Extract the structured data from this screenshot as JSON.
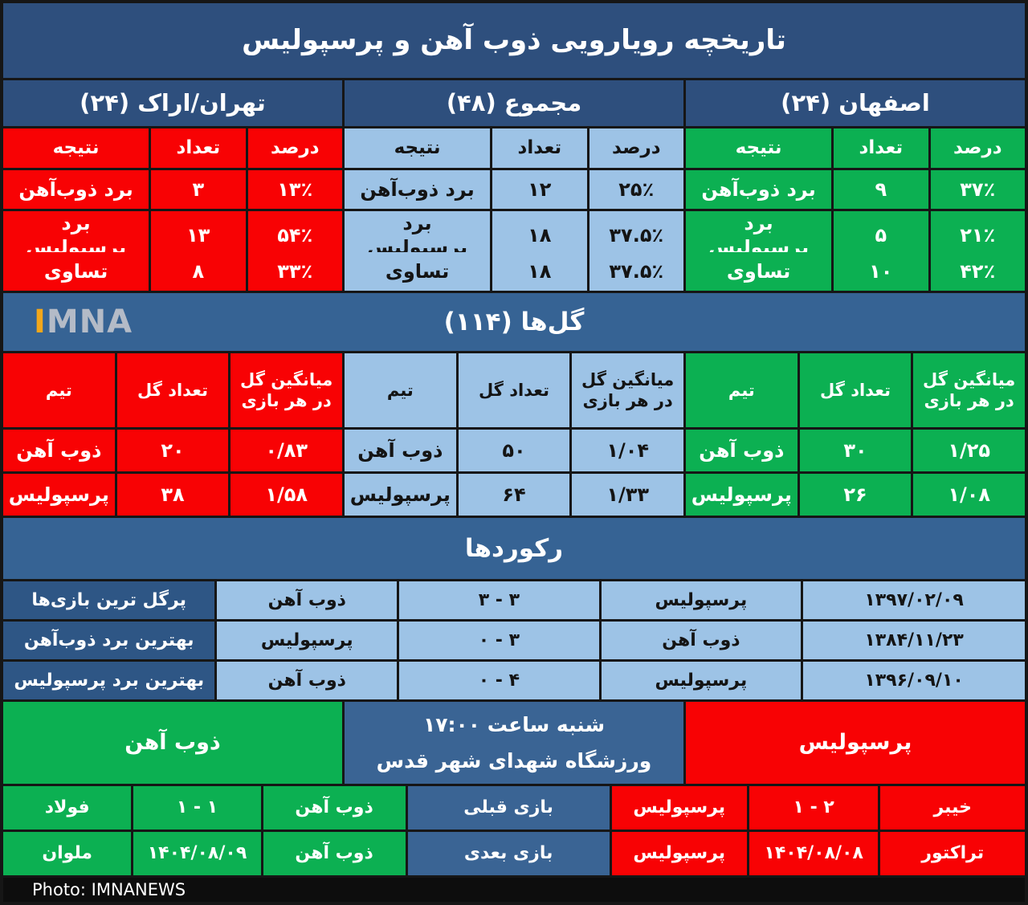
{
  "title": "تاریخچه رویارویی ذوب آهن و پرسپولیس",
  "history": {
    "sections": [
      {
        "title": "تهران/اراک (۲۴)",
        "cols": [
          "نتیجه",
          "تعداد",
          "درصد"
        ],
        "rows": [
          [
            "برد ذوب‌آهن",
            "۳",
            "۱۳٪"
          ],
          [
            "برد پرسپولیس",
            "۱۳",
            "۵۴٪"
          ],
          [
            "تساوی",
            "۸",
            "۳۳٪"
          ]
        ]
      },
      {
        "title": "مجموع (۴۸)",
        "cols": [
          "نتیجه",
          "تعداد",
          "درصد"
        ],
        "rows": [
          [
            "برد ذوب‌آهن",
            "۱۲",
            "۲۵٪"
          ],
          [
            "برد پرسپولیس",
            "۱۸",
            "۳۷.۵٪"
          ],
          [
            "تساوی",
            "۱۸",
            "۳۷.۵٪"
          ]
        ]
      },
      {
        "title": "اصفهان (۲۴)",
        "cols": [
          "نتیجه",
          "تعداد",
          "درصد"
        ],
        "rows": [
          [
            "برد ذوب‌آهن",
            "۹",
            "۳۷٪"
          ],
          [
            "برد پرسپولیس",
            "۵",
            "۲۱٪"
          ],
          [
            "تساوی",
            "۱۰",
            "۴۲٪"
          ]
        ]
      }
    ]
  },
  "goals": {
    "title": "گل‌ها (۱۱۴)",
    "brand_i": "I",
    "brand_rest": "MNA",
    "sections": [
      {
        "cols": [
          "تیم",
          "تعداد گل",
          "میانگین گل در هر بازی"
        ],
        "rows": [
          [
            "ذوب آهن",
            "۲۰",
            "۰/۸۳"
          ],
          [
            "پرسپولیس",
            "۳۸",
            "۱/۵۸"
          ]
        ]
      },
      {
        "cols": [
          "تیم",
          "تعداد گل",
          "میانگین گل در هر بازی"
        ],
        "rows": [
          [
            "ذوب آهن",
            "۵۰",
            "۱/۰۴"
          ],
          [
            "پرسپولیس",
            "۶۴",
            "۱/۳۳"
          ]
        ]
      },
      {
        "cols": [
          "تیم",
          "تعداد گل",
          "میانگین گل در هر بازی"
        ],
        "rows": [
          [
            "ذوب آهن",
            "۳۰",
            "۱/۲۵"
          ],
          [
            "پرسپولیس",
            "۲۶",
            "۱/۰۸"
          ]
        ]
      }
    ]
  },
  "records": {
    "title": "رکوردها",
    "rows": [
      {
        "label": "پرگل ترین بازی‌ها",
        "team_a": "ذوب آهن",
        "score": "۳ - ۳",
        "team_b": "پرسپولیس",
        "date": "۱۳۹۷/۰۲/۰۹"
      },
      {
        "label": "بهترین برد ذوب‌آهن",
        "team_a": "پرسپولیس",
        "score": "۳ - ۰",
        "team_b": "ذوب آهن",
        "date": "۱۳۸۴/۱۱/۲۳"
      },
      {
        "label": "بهترین برد پرسپولیس",
        "team_a": "ذوب آهن",
        "score": "۴ - ۰",
        "team_b": "پرسپولیس",
        "date": "۱۳۹۶/۰۹/۱۰"
      }
    ]
  },
  "upcoming": {
    "home": "ذوب آهن",
    "datetime": "شنبه ساعت ۱۷:۰۰",
    "venue": "ورزشگاه شهدای شهر قدس",
    "away": "پرسپولیس"
  },
  "form_rows": [
    {
      "c1": "فولاد",
      "c2": "۱ - ۱",
      "c3": "ذوب آهن",
      "label": "بازی قبلی",
      "c5": "پرسپولیس",
      "c6": "۲ - ۱",
      "c7": "خیبر"
    },
    {
      "c1": "ملوان",
      "c2": "۱۴۰۴/۰۸/۰۹",
      "c3": "ذوب آهن",
      "label": "بازی بعدی",
      "c5": "پرسپولیس",
      "c6": "۱۴۰۴/۰۸/۰۸",
      "c7": "تراکتور"
    }
  ],
  "footer": {
    "credit": "Photo: IMNANEWS"
  },
  "colors": {
    "dark_blue": "#2e4f7d",
    "band_blue": "#366394",
    "light_blue": "#9dc3e6",
    "red": "#f80204",
    "green": "#0cb052",
    "mid_blue": "#3a6494",
    "record_label_blue": "#2e5685",
    "brand_orange": "#f2a71b",
    "brand_gray": "#b4bbc7",
    "border": "#161616"
  }
}
